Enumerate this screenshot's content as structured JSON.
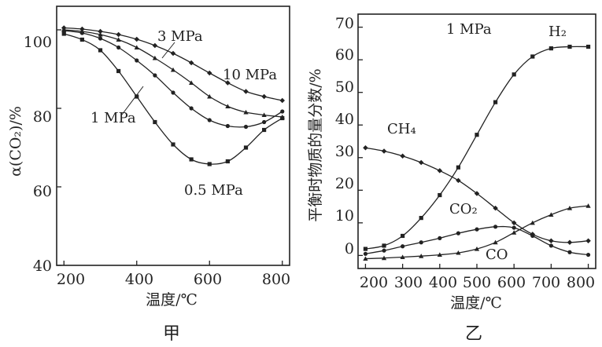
{
  "chart_data": [
    {
      "id": "left",
      "type": "line",
      "caption": "甲",
      "xlabel": "温度/℃",
      "ylabel": "α(CO₂)/%",
      "xlim": [
        180,
        820
      ],
      "ylim": [
        40,
        106
      ],
      "xticks": [
        200,
        400,
        600,
        800
      ],
      "yticks": [
        40,
        60,
        80,
        100
      ],
      "x": [
        200,
        250,
        300,
        350,
        400,
        450,
        500,
        550,
        600,
        650,
        700,
        750,
        800
      ],
      "series": [
        {
          "name": "10 MPa",
          "marker": "diamond",
          "values": [
            100.5,
            100.2,
            99.6,
            98.8,
            97.6,
            96.0,
            94.0,
            91.6,
            89.0,
            86.5,
            84.3,
            83.0,
            82.0
          ]
        },
        {
          "name": "3 MPa",
          "marker": "tri",
          "values": [
            100.0,
            99.6,
            98.8,
            97.5,
            95.5,
            92.8,
            89.8,
            86.5,
            83.0,
            80.5,
            79.0,
            78.3,
            77.8
          ]
        },
        {
          "name": "1 MPa",
          "marker": "circle",
          "values": [
            99.8,
            99.2,
            97.8,
            95.5,
            92.2,
            88.4,
            84.0,
            80.0,
            77.0,
            75.5,
            75.3,
            76.5,
            79.2
          ]
        },
        {
          "name": "0.5 MPa",
          "marker": "square",
          "values": [
            99.0,
            97.5,
            94.8,
            89.5,
            83.0,
            76.5,
            70.8,
            67.0,
            65.8,
            66.5,
            70.0,
            74.5,
            77.5
          ]
        }
      ],
      "annotations": [
        "3 MPa",
        "10 MPa",
        "1 MPa",
        "0.5 MPa"
      ]
    },
    {
      "id": "right",
      "type": "line",
      "caption": "乙",
      "xlabel": "温度/℃",
      "ylabel": "平衡时物质的量分数/%",
      "subtitle": "1 MPa",
      "xlim": [
        180,
        820
      ],
      "ylim": [
        -4,
        74
      ],
      "xticks": [
        200,
        300,
        400,
        500,
        600,
        700,
        800
      ],
      "yticks": [
        0,
        10,
        20,
        30,
        40,
        50,
        60,
        70
      ],
      "x": [
        200,
        250,
        300,
        350,
        400,
        450,
        500,
        550,
        600,
        650,
        700,
        750,
        800
      ],
      "series": [
        {
          "name": "H₂",
          "marker": "square",
          "values": [
            2.0,
            3.0,
            6.0,
            11.5,
            18.5,
            27.0,
            37.0,
            47.0,
            55.5,
            61.0,
            63.5,
            64.0,
            64.0
          ]
        },
        {
          "name": "CH₄",
          "marker": "diamond",
          "values": [
            33.0,
            32.0,
            30.5,
            28.5,
            26.0,
            23.0,
            19.0,
            14.5,
            10.0,
            6.5,
            4.5,
            4.0,
            4.5
          ]
        },
        {
          "name": "CO₂",
          "marker": "circle",
          "values": [
            0.5,
            1.5,
            2.8,
            4.0,
            5.3,
            6.8,
            8.0,
            8.8,
            8.5,
            6.0,
            3.0,
            1.0,
            0.2
          ]
        },
        {
          "name": "CO",
          "marker": "tri",
          "values": [
            -1.0,
            -0.8,
            -0.5,
            -0.2,
            0.2,
            0.8,
            2.0,
            4.0,
            7.0,
            10.0,
            12.5,
            14.5,
            15.2
          ]
        }
      ],
      "annotations": [
        "1 MPa",
        "H₂",
        "CH₄",
        "CO₂",
        "CO"
      ]
    }
  ]
}
